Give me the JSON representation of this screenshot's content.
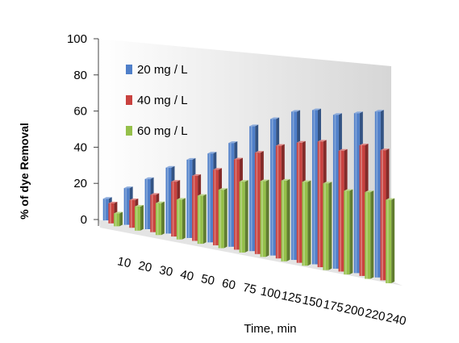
{
  "chart_data": {
    "type": "bar",
    "title": "",
    "xlabel": "Time, min",
    "ylabel": "% of  dye Removal",
    "ylim": [
      0,
      100
    ],
    "yticks": [
      "0",
      "20",
      "40",
      "60",
      "80",
      "100"
    ],
    "categories": [
      "10",
      "20",
      "30",
      "40",
      "50",
      "60",
      "75",
      "100",
      "125",
      "150",
      "175",
      "200",
      "220",
      "240"
    ],
    "series": [
      {
        "name": "20 mg / L",
        "color": "#4f7fc9",
        "values": [
          12,
          20,
          27,
          35,
          41,
          46,
          53,
          63,
          68,
          73,
          75,
          74,
          76,
          78
        ]
      },
      {
        "name": "40 mg / L",
        "color": "#c9423f",
        "values": [
          11,
          15,
          20,
          29,
          34,
          39,
          46,
          51,
          56,
          59,
          61,
          58,
          62,
          61
        ]
      },
      {
        "name": "60 mg / L",
        "color": "#95c04a",
        "values": [
          7,
          13,
          17,
          21,
          25,
          30,
          36,
          38,
          40,
          41,
          42,
          40,
          41,
          39
        ]
      }
    ],
    "legend_position": "top-left",
    "grid": false,
    "style": "3d-clustered"
  }
}
